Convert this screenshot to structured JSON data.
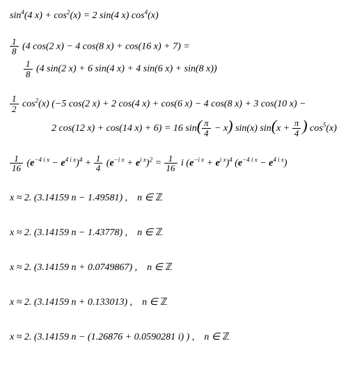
{
  "background_color": "#ffffff",
  "text_color": "#000000",
  "font_family": "Georgia, Times New Roman, serif",
  "font_size_pt": 14,
  "font_style": "italic",
  "equations": {
    "eq1": "sin⁴(4 x) + cos²(x) = 2 sin(4 x) cos⁴(x)",
    "eq2": {
      "line1_pre": "",
      "line1_aft": " (4 cos(2 x) − 4 cos(8 x) + cos(16 x) + 7) =",
      "line2_pre": "",
      "line2_aft": " (4 sin(2 x) + 6 sin(4 x) + 4 sin(6 x) + sin(8 x))",
      "frac1_num": "1",
      "frac1_den": "8",
      "frac2_num": "1",
      "frac2_den": "8"
    },
    "eq3": {
      "line1_aft": " cos²(x) (−5 cos(2 x) + 2 cos(4 x) + cos(6 x) − 4 cos(8 x) + 3 cos(10 x) −",
      "line2_pre": "2 cos(12 x) + cos(14 x) + 6) = 16 sin",
      "line2_mid1": " − x",
      "line2_mid2": " sin(x) sin",
      "line2_mid3": "x + ",
      "line2_end": " cos⁵(x)",
      "frac1_num": "1",
      "frac1_den": "2",
      "fracpi_num": "π",
      "fracpi_den": "4"
    },
    "eq4": {
      "f1n": "1",
      "f1d": "16",
      "p1": " (𝒆⁻⁴ⁱˣ − 𝒆⁴ⁱˣ)⁴ + ",
      "f2n": "1",
      "f2d": "4",
      "p2": " (𝒆⁻ⁱˣ + 𝒆ⁱˣ)² = ",
      "f3n": "1",
      "f3d": "16",
      "p3": " i (𝒆⁻ⁱˣ + 𝒆ⁱˣ)⁴ (𝒆⁻⁴ⁱˣ − 𝒆⁴ⁱˣ)"
    },
    "sol1": "x ≈ 2. (3.14159 n − 1.49581) ,    n ∈ ℤ",
    "sol2": "x ≈ 2. (3.14159 n − 1.43778) ,    n ∈ ℤ",
    "sol3": "x ≈ 2. (3.14159 n + 0.0749867) ,    n ∈ ℤ",
    "sol4": "x ≈ 2. (3.14159 n + 0.133013) ,    n ∈ ℤ",
    "sol5": "x ≈ 2. (3.14159 n − (1.26876 + 0.0590281 i) ) ,    n ∈ ℤ"
  }
}
